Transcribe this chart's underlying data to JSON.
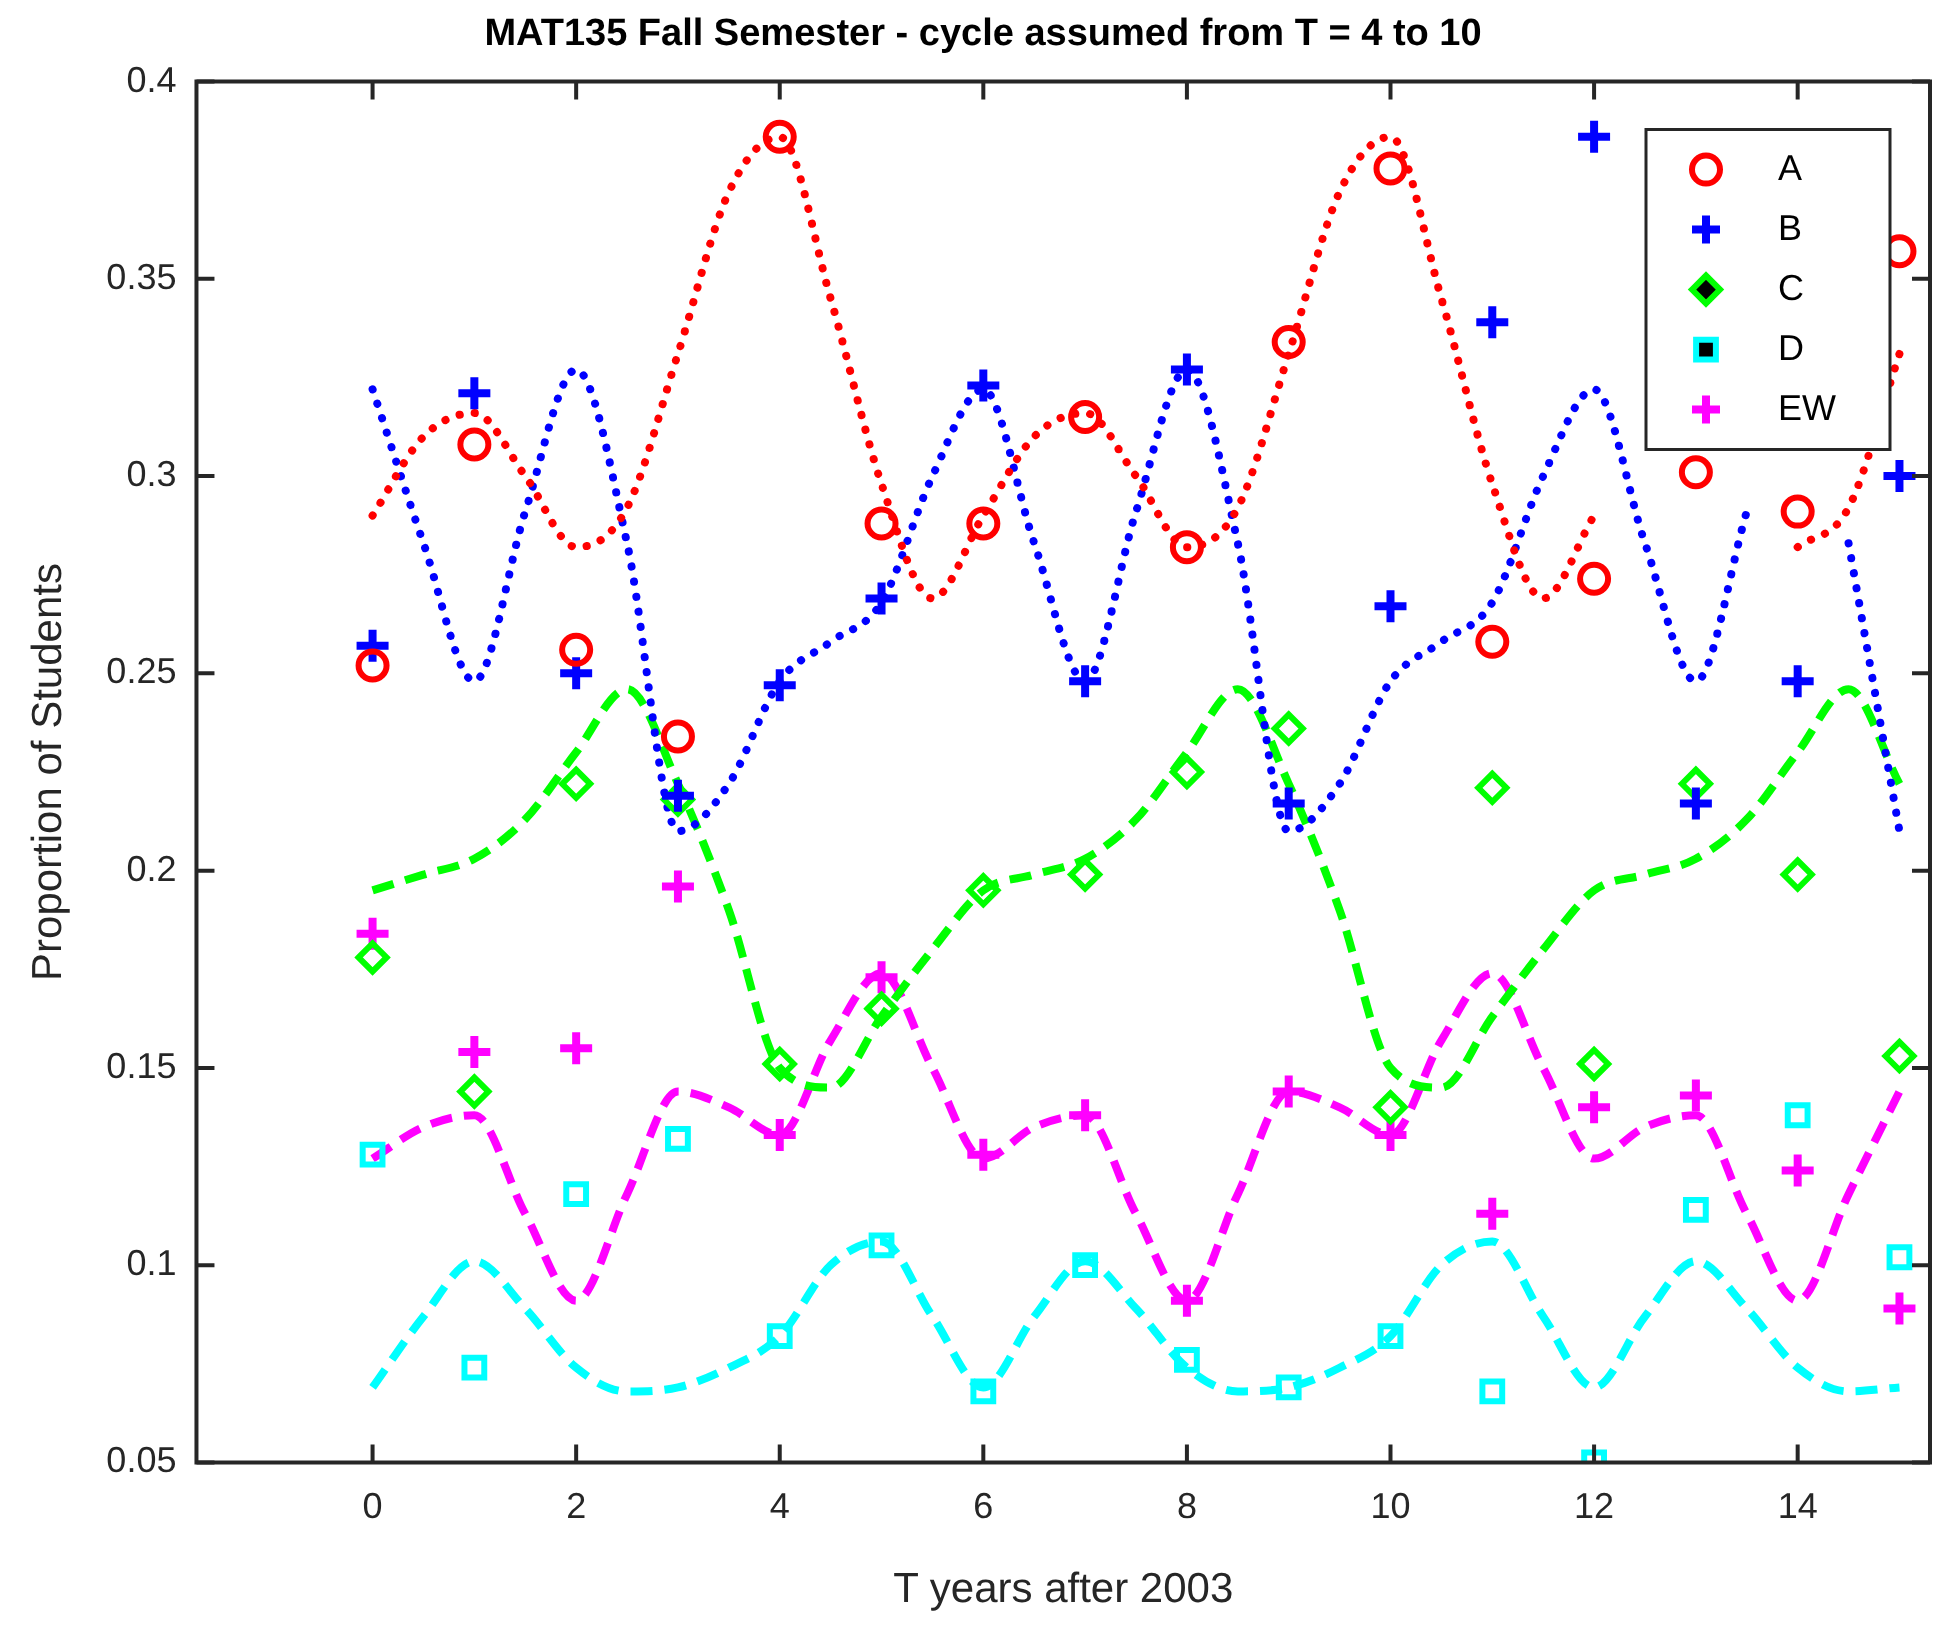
{
  "chart_data": {
    "type": "scatter",
    "title": "MAT135 Fall Semester - cycle assumed from T = 4 to 10",
    "xlabel": "T years after 2003",
    "ylabel": "Proportion of Students",
    "x": [
      0,
      1,
      2,
      3,
      4,
      5,
      6,
      7,
      8,
      9,
      10,
      11,
      12,
      13,
      14,
      15
    ],
    "xlim": [
      -1.73,
      15.3
    ],
    "xticks": [
      0,
      2,
      4,
      6,
      8,
      10,
      12,
      14
    ],
    "ylim": [
      0.05,
      0.4
    ],
    "yticks": [
      0.05,
      0.1,
      0.15,
      0.2,
      0.25,
      0.3,
      0.35,
      0.4
    ],
    "legend": "top right",
    "grid": false,
    "series": [
      {
        "name": "A",
        "color": "#ff0000",
        "marker": "circle",
        "values": [
          0.252,
          0.308,
          0.256,
          0.234,
          0.386,
          0.288,
          0.288,
          0.315,
          0.282,
          0.334,
          0.378,
          0.258,
          0.274,
          0.301,
          0.291,
          0.357
        ]
      },
      {
        "name": "B",
        "color": "#0000ff",
        "marker": "cross",
        "values": [
          0.257,
          0.321,
          0.25,
          0.219,
          0.247,
          0.269,
          0.323,
          0.248,
          0.327,
          0.217,
          0.267,
          0.339,
          0.386,
          0.217,
          0.248,
          0.3
        ]
      },
      {
        "name": "C",
        "color": "#00ff00",
        "marker": "diamond",
        "values": [
          0.178,
          0.144,
          0.222,
          0.218,
          0.151,
          0.165,
          0.195,
          0.199,
          0.225,
          0.236,
          0.14,
          0.221,
          0.151,
          0.222,
          0.199,
          0.153
        ]
      },
      {
        "name": "D",
        "color": "#00ffff",
        "marker": "square",
        "values": [
          0.128,
          0.074,
          0.118,
          0.132,
          0.082,
          0.105,
          0.068,
          0.1,
          0.076,
          0.069,
          0.082,
          0.068,
          0.05,
          0.114,
          0.138,
          0.102
        ]
      },
      {
        "name": "EW",
        "color": "#ff00ff",
        "marker": "cross",
        "values": [
          0.184,
          0.154,
          0.155,
          0.196,
          0.133,
          0.173,
          0.128,
          0.138,
          0.091,
          0.144,
          0.133,
          0.113,
          0.14,
          0.143,
          0.124,
          0.089
        ]
      },
      {
        "type": "line",
        "color": "#ff0000",
        "marker": "none",
        "line_style": "dotted",
        "x": [
          0,
          0.5,
          1,
          1.5,
          2,
          2.5,
          3,
          3.5,
          4,
          4.5,
          5,
          5.5,
          6,
          6.5,
          7,
          7.5,
          8,
          8.5,
          9,
          9.5,
          10,
          10.5,
          11,
          11.5,
          12,
          12.5,
          13,
          13.5,
          14,
          14.5,
          15
        ],
        "values": [
          0.29,
          0.31,
          0.316,
          0.3,
          0.282,
          0.292,
          0.331,
          0.372,
          0.386,
          0.345,
          0.298,
          0.269,
          0.29,
          0.31,
          0.316,
          0.3,
          0.282,
          0.292,
          0.331,
          0.372,
          0.386,
          0.345,
          0.298,
          0.269,
          0.29,
          null,
          null,
          null,
          0.282,
          0.292,
          0.331
        ]
      },
      {
        "type": "line",
        "color": "#0000ff",
        "marker": "none",
        "line_style": "dotted",
        "x": [
          0,
          0.5,
          1,
          1.5,
          2,
          2.5,
          3,
          3.5,
          4,
          4.5,
          5,
          5.5,
          6,
          6.5,
          7,
          7.5,
          8,
          8.5,
          9,
          9.5,
          10,
          10.5,
          11,
          11.5,
          12,
          12.5,
          13,
          13.5,
          14,
          14.5,
          15
        ],
        "values": [
          0.322,
          0.283,
          0.248,
          0.291,
          0.327,
          0.283,
          0.21,
          0.222,
          0.248,
          0.258,
          0.268,
          0.3,
          0.322,
          0.283,
          0.248,
          0.291,
          0.327,
          0.283,
          0.21,
          0.222,
          0.248,
          0.258,
          0.268,
          0.3,
          0.322,
          0.283,
          0.248,
          0.291,
          null,
          0.283,
          0.21
        ]
      },
      {
        "type": "line",
        "color": "#00ff00",
        "marker": "none",
        "line_style": "dashed",
        "x": [
          0,
          0.5,
          1,
          1.5,
          2,
          2.5,
          3,
          3.5,
          4,
          4.5,
          5,
          5.5,
          6,
          6.5,
          7,
          7.5,
          8,
          8.5,
          9,
          9.5,
          10,
          10.5,
          11,
          11.5,
          12,
          12.5,
          13,
          13.5,
          14,
          14.5,
          15
        ],
        "values": [
          0.195,
          0.199,
          0.203,
          0.213,
          0.23,
          0.246,
          0.222,
          0.19,
          0.15,
          0.145,
          0.163,
          0.18,
          0.195,
          0.199,
          0.203,
          0.213,
          0.23,
          0.246,
          0.222,
          0.19,
          0.15,
          0.145,
          0.163,
          0.18,
          0.195,
          0.199,
          0.203,
          0.213,
          0.23,
          0.246,
          0.222
        ]
      },
      {
        "type": "line",
        "color": "#00ffff",
        "marker": "none",
        "line_style": "dashed",
        "x": [
          0,
          0.5,
          1,
          1.5,
          2,
          2.5,
          3,
          3.5,
          4,
          4.5,
          5,
          5.5,
          6,
          6.5,
          7,
          7.5,
          8,
          8.5,
          9,
          9.5,
          10,
          10.5,
          11,
          11.5,
          12,
          12.5,
          13,
          13.5,
          14,
          14.5,
          15
        ],
        "values": [
          0.069,
          0.087,
          0.101,
          0.089,
          0.074,
          0.068,
          0.069,
          0.074,
          0.082,
          0.1,
          0.106,
          0.087,
          0.069,
          0.087,
          0.101,
          0.089,
          0.074,
          0.068,
          0.069,
          0.074,
          0.082,
          0.1,
          0.106,
          0.087,
          0.069,
          0.087,
          0.101,
          0.089,
          0.074,
          0.068,
          0.069
        ]
      },
      {
        "type": "line",
        "color": "#ff00ff",
        "marker": "none",
        "line_style": "dashed",
        "x": [
          0,
          0.5,
          1,
          1.5,
          2,
          2.5,
          3,
          3.5,
          4,
          4.5,
          5,
          5.5,
          6,
          6.5,
          7,
          7.5,
          8,
          8.5,
          9,
          9.5,
          10,
          10.5,
          11,
          11.5,
          12,
          12.5,
          13,
          13.5,
          14,
          14.5,
          15
        ],
        "values": [
          0.127,
          0.135,
          0.138,
          0.113,
          0.091,
          0.118,
          0.144,
          0.14,
          0.133,
          0.157,
          0.174,
          0.15,
          0.127,
          0.135,
          0.138,
          0.113,
          0.091,
          0.118,
          0.144,
          0.14,
          0.133,
          0.157,
          0.174,
          0.15,
          0.127,
          0.135,
          0.138,
          0.113,
          0.091,
          0.118,
          0.144
        ]
      }
    ]
  }
}
